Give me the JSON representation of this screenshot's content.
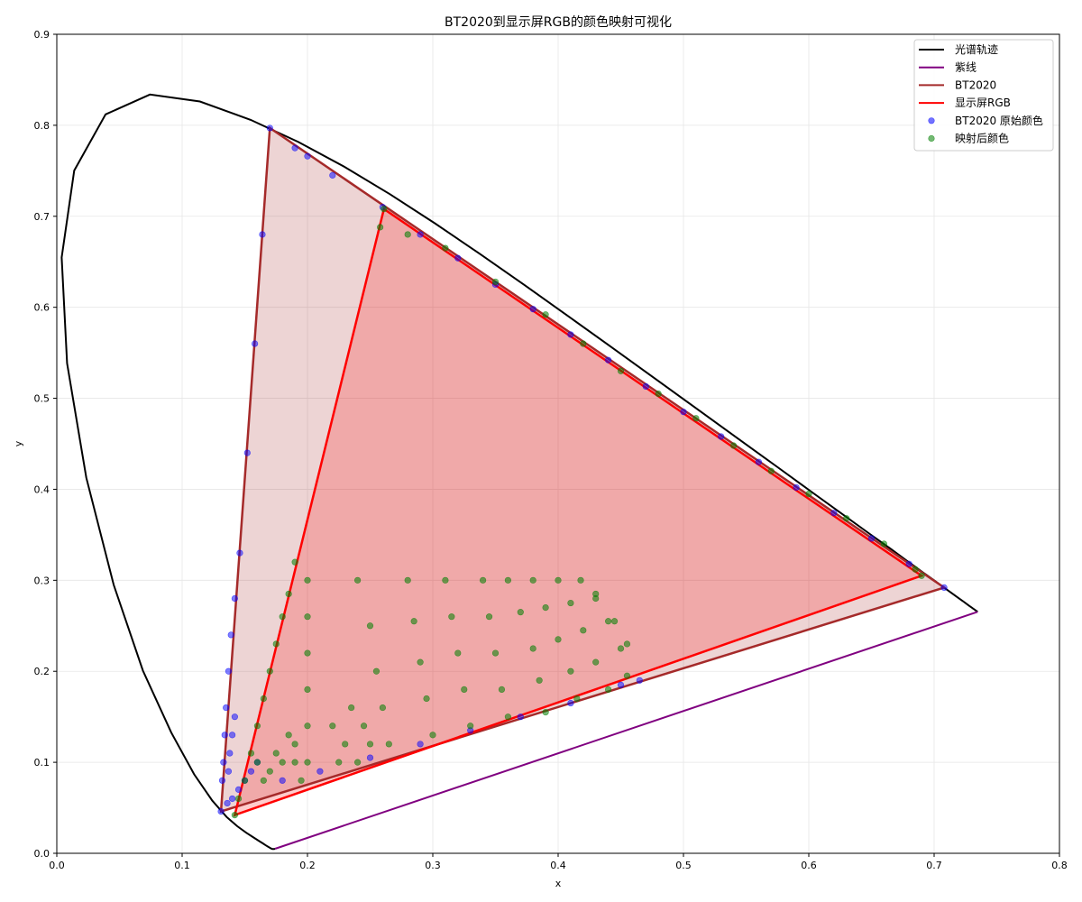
{
  "chart_data": {
    "type": "scatter",
    "title": "BT2020到显示屏RGB的颜色映射可视化",
    "xlabel": "x",
    "ylabel": "y",
    "xlim": [
      0.0,
      0.8
    ],
    "ylim": [
      0.0,
      0.9
    ],
    "xticks": [
      "0.0",
      "0.1",
      "0.2",
      "0.3",
      "0.4",
      "0.5",
      "0.6",
      "0.7",
      "0.8"
    ],
    "yticks": [
      "0.0",
      "0.1",
      "0.2",
      "0.3",
      "0.4",
      "0.5",
      "0.6",
      "0.7",
      "0.8",
      "0.9"
    ],
    "grid": true,
    "legend_position": "top-right",
    "colors": {
      "spectral_locus": "#000000",
      "purple_line": "#800080",
      "bt2020": "#a52a2a",
      "display_rgb": "#ff0000",
      "bt2020_points": "#0000ff",
      "mapped_points": "#008000"
    },
    "series": [
      {
        "name": "光谱轨迹",
        "kind": "line",
        "points": [
          [
            0.1741,
            0.005
          ],
          [
            0.1738,
            0.0049
          ],
          [
            0.1736,
            0.0049
          ],
          [
            0.1733,
            0.0048
          ],
          [
            0.173,
            0.0048
          ],
          [
            0.1726,
            0.0048
          ],
          [
            0.1721,
            0.0048
          ],
          [
            0.1714,
            0.0051
          ],
          [
            0.1703,
            0.0058
          ],
          [
            0.1689,
            0.0069
          ],
          [
            0.1669,
            0.0086
          ],
          [
            0.1644,
            0.0109
          ],
          [
            0.1611,
            0.0138
          ],
          [
            0.1566,
            0.0177
          ],
          [
            0.151,
            0.0227
          ],
          [
            0.144,
            0.0297
          ],
          [
            0.1355,
            0.0399
          ],
          [
            0.1241,
            0.0578
          ],
          [
            0.1096,
            0.0868
          ],
          [
            0.0913,
            0.1327
          ],
          [
            0.0687,
            0.2007
          ],
          [
            0.0454,
            0.295
          ],
          [
            0.0235,
            0.4127
          ],
          [
            0.0082,
            0.5384
          ],
          [
            0.0039,
            0.6548
          ],
          [
            0.0139,
            0.7502
          ],
          [
            0.0389,
            0.812
          ],
          [
            0.0743,
            0.8338
          ],
          [
            0.1142,
            0.8262
          ],
          [
            0.1547,
            0.8059
          ],
          [
            0.1929,
            0.7816
          ],
          [
            0.2296,
            0.7543
          ],
          [
            0.2658,
            0.7243
          ],
          [
            0.3016,
            0.6923
          ],
          [
            0.3373,
            0.6589
          ],
          [
            0.3731,
            0.6245
          ],
          [
            0.4087,
            0.5896
          ],
          [
            0.4441,
            0.5547
          ],
          [
            0.4788,
            0.5202
          ],
          [
            0.5125,
            0.4866
          ],
          [
            0.5448,
            0.4544
          ],
          [
            0.5752,
            0.4242
          ],
          [
            0.6029,
            0.3965
          ],
          [
            0.627,
            0.3725
          ],
          [
            0.6482,
            0.3514
          ],
          [
            0.6658,
            0.334
          ],
          [
            0.6801,
            0.3197
          ],
          [
            0.6915,
            0.3083
          ],
          [
            0.7006,
            0.2993
          ],
          [
            0.7079,
            0.292
          ],
          [
            0.714,
            0.2859
          ],
          [
            0.719,
            0.2809
          ],
          [
            0.723,
            0.277
          ],
          [
            0.726,
            0.274
          ],
          [
            0.7283,
            0.2717
          ],
          [
            0.73,
            0.27
          ],
          [
            0.7311,
            0.2689
          ],
          [
            0.732,
            0.268
          ],
          [
            0.7327,
            0.2673
          ],
          [
            0.7334,
            0.2666
          ],
          [
            0.734,
            0.266
          ],
          [
            0.7344,
            0.2656
          ],
          [
            0.7346,
            0.2654
          ],
          [
            0.7347,
            0.2653
          ]
        ]
      },
      {
        "name": "紫线",
        "kind": "line",
        "points": [
          [
            0.7347,
            0.2653
          ],
          [
            0.1741,
            0.005
          ]
        ]
      },
      {
        "name": "BT2020",
        "kind": "polygon",
        "points": [
          [
            0.708,
            0.292
          ],
          [
            0.17,
            0.797
          ],
          [
            0.131,
            0.046
          ]
        ]
      },
      {
        "name": "显示屏RGB",
        "kind": "polygon",
        "points": [
          [
            0.69,
            0.305
          ],
          [
            0.261,
            0.708
          ],
          [
            0.142,
            0.042
          ]
        ]
      },
      {
        "name": "BT2020 原始颜色",
        "kind": "scatter",
        "points": [
          [
            0.708,
            0.292
          ],
          [
            0.17,
            0.797
          ],
          [
            0.131,
            0.046
          ],
          [
            0.68,
            0.318
          ],
          [
            0.62,
            0.374
          ],
          [
            0.56,
            0.43
          ],
          [
            0.5,
            0.485
          ],
          [
            0.44,
            0.542
          ],
          [
            0.38,
            0.598
          ],
          [
            0.32,
            0.654
          ],
          [
            0.26,
            0.71
          ],
          [
            0.2,
            0.766
          ],
          [
            0.19,
            0.775
          ],
          [
            0.22,
            0.745
          ],
          [
            0.29,
            0.68
          ],
          [
            0.35,
            0.625
          ],
          [
            0.41,
            0.57
          ],
          [
            0.47,
            0.513
          ],
          [
            0.53,
            0.458
          ],
          [
            0.59,
            0.402
          ],
          [
            0.65,
            0.346
          ],
          [
            0.164,
            0.68
          ],
          [
            0.158,
            0.56
          ],
          [
            0.152,
            0.44
          ],
          [
            0.146,
            0.33
          ],
          [
            0.142,
            0.28
          ],
          [
            0.139,
            0.24
          ],
          [
            0.137,
            0.2
          ],
          [
            0.135,
            0.16
          ],
          [
            0.134,
            0.13
          ],
          [
            0.133,
            0.1
          ],
          [
            0.132,
            0.08
          ],
          [
            0.136,
            0.055
          ],
          [
            0.14,
            0.06
          ],
          [
            0.145,
            0.07
          ],
          [
            0.15,
            0.08
          ],
          [
            0.155,
            0.09
          ],
          [
            0.16,
            0.1
          ],
          [
            0.465,
            0.19
          ],
          [
            0.45,
            0.185
          ],
          [
            0.41,
            0.165
          ],
          [
            0.37,
            0.15
          ],
          [
            0.33,
            0.135
          ],
          [
            0.29,
            0.12
          ],
          [
            0.25,
            0.105
          ],
          [
            0.21,
            0.09
          ],
          [
            0.18,
            0.08
          ],
          [
            0.137,
            0.09
          ],
          [
            0.138,
            0.11
          ],
          [
            0.14,
            0.13
          ],
          [
            0.142,
            0.15
          ]
        ]
      },
      {
        "name": "映射后颜色",
        "kind": "scatter",
        "points": [
          [
            0.69,
            0.305
          ],
          [
            0.261,
            0.708
          ],
          [
            0.142,
            0.042
          ],
          [
            0.258,
            0.688
          ],
          [
            0.28,
            0.68
          ],
          [
            0.31,
            0.665
          ],
          [
            0.35,
            0.628
          ],
          [
            0.39,
            0.592
          ],
          [
            0.42,
            0.56
          ],
          [
            0.45,
            0.53
          ],
          [
            0.48,
            0.505
          ],
          [
            0.51,
            0.478
          ],
          [
            0.54,
            0.448
          ],
          [
            0.57,
            0.42
          ],
          [
            0.6,
            0.395
          ],
          [
            0.63,
            0.368
          ],
          [
            0.66,
            0.34
          ],
          [
            0.685,
            0.312
          ],
          [
            0.19,
            0.32
          ],
          [
            0.185,
            0.285
          ],
          [
            0.18,
            0.26
          ],
          [
            0.175,
            0.23
          ],
          [
            0.17,
            0.2
          ],
          [
            0.165,
            0.17
          ],
          [
            0.16,
            0.14
          ],
          [
            0.155,
            0.11
          ],
          [
            0.15,
            0.08
          ],
          [
            0.145,
            0.06
          ],
          [
            0.2,
            0.3
          ],
          [
            0.2,
            0.26
          ],
          [
            0.2,
            0.22
          ],
          [
            0.2,
            0.18
          ],
          [
            0.2,
            0.14
          ],
          [
            0.2,
            0.1
          ],
          [
            0.24,
            0.3
          ],
          [
            0.25,
            0.25
          ],
          [
            0.255,
            0.2
          ],
          [
            0.26,
            0.16
          ],
          [
            0.265,
            0.12
          ],
          [
            0.28,
            0.3
          ],
          [
            0.285,
            0.255
          ],
          [
            0.29,
            0.21
          ],
          [
            0.295,
            0.17
          ],
          [
            0.3,
            0.13
          ],
          [
            0.31,
            0.3
          ],
          [
            0.315,
            0.26
          ],
          [
            0.32,
            0.22
          ],
          [
            0.325,
            0.18
          ],
          [
            0.33,
            0.14
          ],
          [
            0.34,
            0.3
          ],
          [
            0.345,
            0.26
          ],
          [
            0.35,
            0.22
          ],
          [
            0.355,
            0.18
          ],
          [
            0.36,
            0.15
          ],
          [
            0.36,
            0.3
          ],
          [
            0.37,
            0.265
          ],
          [
            0.38,
            0.225
          ],
          [
            0.385,
            0.19
          ],
          [
            0.39,
            0.155
          ],
          [
            0.38,
            0.3
          ],
          [
            0.39,
            0.27
          ],
          [
            0.4,
            0.235
          ],
          [
            0.41,
            0.2
          ],
          [
            0.415,
            0.17
          ],
          [
            0.4,
            0.3
          ],
          [
            0.41,
            0.275
          ],
          [
            0.42,
            0.245
          ],
          [
            0.43,
            0.21
          ],
          [
            0.44,
            0.18
          ],
          [
            0.418,
            0.3
          ],
          [
            0.43,
            0.28
          ],
          [
            0.44,
            0.255
          ],
          [
            0.45,
            0.225
          ],
          [
            0.455,
            0.195
          ],
          [
            0.43,
            0.285
          ],
          [
            0.445,
            0.255
          ],
          [
            0.455,
            0.23
          ],
          [
            0.19,
            0.12
          ],
          [
            0.19,
            0.1
          ],
          [
            0.18,
            0.1
          ],
          [
            0.17,
            0.09
          ],
          [
            0.175,
            0.11
          ],
          [
            0.185,
            0.13
          ],
          [
            0.195,
            0.08
          ],
          [
            0.165,
            0.08
          ],
          [
            0.16,
            0.1
          ],
          [
            0.23,
            0.12
          ],
          [
            0.225,
            0.1
          ],
          [
            0.22,
            0.14
          ],
          [
            0.235,
            0.16
          ],
          [
            0.245,
            0.14
          ],
          [
            0.24,
            0.1
          ],
          [
            0.25,
            0.12
          ]
        ]
      }
    ]
  }
}
